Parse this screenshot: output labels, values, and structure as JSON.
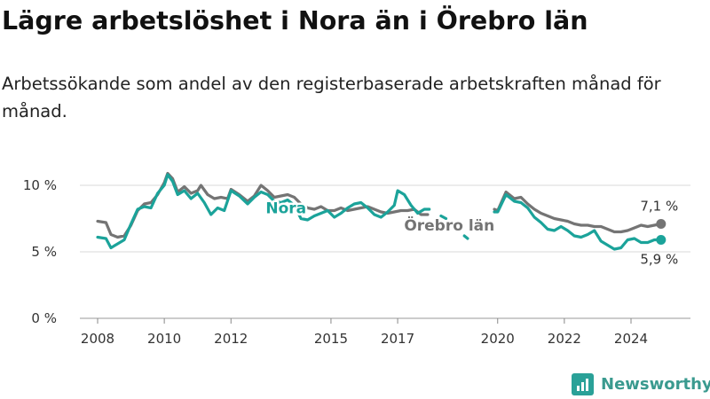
{
  "header": {
    "title": "Lägre arbetslöshet i Nora än i Örebro län",
    "subtitle": "Arbetssökande som andel av den registerbaserade arbetskraften månad för månad."
  },
  "brand": {
    "name": "Newsworthy",
    "icon": "bar-chart-logo-icon"
  },
  "chart_data": {
    "type": "line",
    "title": "Lägre arbetslöshet i Nora än i Örebro län",
    "subtitle": "Arbetssökande som andel av den registerbaserade arbetskraften månad för månad.",
    "xlabel": "",
    "ylabel": "",
    "x_range": [
      2007.5,
      2025.5
    ],
    "ylim": [
      0,
      12
    ],
    "y_ticks": [
      {
        "value": 0,
        "label": "0 %"
      },
      {
        "value": 5,
        "label": "5 %"
      },
      {
        "value": 10,
        "label": "10 %"
      }
    ],
    "x_ticks": [
      {
        "value": 2008,
        "label": "2008"
      },
      {
        "value": 2010,
        "label": "2010"
      },
      {
        "value": 2012,
        "label": "2012"
      },
      {
        "value": 2015,
        "label": "2015"
      },
      {
        "value": 2017,
        "label": "2017"
      },
      {
        "value": 2020,
        "label": "2020"
      },
      {
        "value": 2022,
        "label": "2022"
      },
      {
        "value": 2024,
        "label": "2024"
      }
    ],
    "grid": true,
    "series": [
      {
        "name": "Örebro län",
        "color": "#747474",
        "end_label": "7,1 %",
        "segments": [
          [
            [
              2008.0,
              7.3
            ],
            [
              2008.25,
              7.2
            ],
            [
              2008.4,
              6.3
            ],
            [
              2008.6,
              6.1
            ],
            [
              2008.8,
              6.2
            ],
            [
              2009.0,
              7.0
            ],
            [
              2009.2,
              8.1
            ],
            [
              2009.4,
              8.6
            ],
            [
              2009.6,
              8.7
            ],
            [
              2009.8,
              9.3
            ],
            [
              2010.0,
              10.2
            ],
            [
              2010.1,
              10.9
            ],
            [
              2010.25,
              10.5
            ],
            [
              2010.4,
              9.5
            ],
            [
              2010.6,
              9.9
            ],
            [
              2010.8,
              9.4
            ],
            [
              2011.0,
              9.6
            ],
            [
              2011.1,
              10.0
            ],
            [
              2011.3,
              9.3
            ],
            [
              2011.5,
              9.0
            ],
            [
              2011.7,
              9.1
            ],
            [
              2011.9,
              9.0
            ],
            [
              2012.0,
              9.7
            ],
            [
              2012.25,
              9.3
            ],
            [
              2012.5,
              8.8
            ],
            [
              2012.7,
              9.2
            ],
            [
              2012.9,
              10.0
            ],
            [
              2013.1,
              9.6
            ],
            [
              2013.3,
              9.1
            ],
            [
              2013.5,
              9.2
            ],
            [
              2013.7,
              9.3
            ],
            [
              2013.9,
              9.1
            ],
            [
              2014.1,
              8.6
            ],
            [
              2014.3,
              8.3
            ],
            [
              2014.5,
              8.2
            ],
            [
              2014.7,
              8.4
            ],
            [
              2014.9,
              8.1
            ],
            [
              2015.1,
              8.1
            ],
            [
              2015.3,
              8.3
            ],
            [
              2015.5,
              8.1
            ],
            [
              2015.7,
              8.2
            ],
            [
              2015.9,
              8.3
            ],
            [
              2016.1,
              8.4
            ],
            [
              2016.3,
              8.2
            ],
            [
              2016.5,
              8.0
            ],
            [
              2016.7,
              7.9
            ],
            [
              2016.9,
              8.0
            ],
            [
              2017.1,
              8.1
            ],
            [
              2017.3,
              8.1
            ],
            [
              2017.5,
              8.2
            ],
            [
              2017.7,
              7.8
            ],
            [
              2017.9,
              7.8
            ]
          ],
          [
            [
              2019.9,
              8.2
            ],
            [
              2020.0,
              8.1
            ],
            [
              2020.25,
              9.5
            ],
            [
              2020.5,
              9.0
            ],
            [
              2020.7,
              9.1
            ],
            [
              2020.9,
              8.6
            ],
            [
              2021.1,
              8.2
            ],
            [
              2021.3,
              7.9
            ],
            [
              2021.5,
              7.7
            ],
            [
              2021.7,
              7.5
            ],
            [
              2021.9,
              7.4
            ],
            [
              2022.1,
              7.3
            ],
            [
              2022.3,
              7.1
            ],
            [
              2022.5,
              7.0
            ],
            [
              2022.7,
              7.0
            ],
            [
              2022.9,
              6.9
            ],
            [
              2023.1,
              6.9
            ],
            [
              2023.3,
              6.7
            ],
            [
              2023.5,
              6.5
            ],
            [
              2023.7,
              6.5
            ],
            [
              2023.9,
              6.6
            ],
            [
              2024.1,
              6.8
            ],
            [
              2024.3,
              7.0
            ],
            [
              2024.5,
              6.9
            ],
            [
              2024.7,
              7.0
            ],
            [
              2024.9,
              7.1
            ]
          ]
        ]
      },
      {
        "name": "Nora",
        "color": "#1ba39a",
        "end_label": "5,9 %",
        "segments": [
          [
            [
              2008.0,
              6.1
            ],
            [
              2008.25,
              6.0
            ],
            [
              2008.4,
              5.3
            ],
            [
              2008.6,
              5.6
            ],
            [
              2008.8,
              5.9
            ],
            [
              2009.0,
              7.1
            ],
            [
              2009.2,
              8.2
            ],
            [
              2009.4,
              8.4
            ],
            [
              2009.6,
              8.3
            ],
            [
              2009.8,
              9.4
            ],
            [
              2010.0,
              10.0
            ],
            [
              2010.1,
              10.8
            ],
            [
              2010.25,
              10.3
            ],
            [
              2010.4,
              9.3
            ],
            [
              2010.6,
              9.6
            ],
            [
              2010.8,
              9.0
            ],
            [
              2011.0,
              9.4
            ],
            [
              2011.2,
              8.7
            ],
            [
              2011.4,
              7.8
            ],
            [
              2011.6,
              8.3
            ],
            [
              2011.8,
              8.1
            ],
            [
              2012.0,
              9.6
            ],
            [
              2012.25,
              9.2
            ],
            [
              2012.5,
              8.6
            ],
            [
              2012.7,
              9.1
            ],
            [
              2012.9,
              9.5
            ],
            [
              2013.1,
              9.3
            ],
            [
              2013.3,
              8.8
            ],
            [
              2013.5,
              8.7
            ],
            [
              2013.7,
              8.9
            ],
            [
              2013.9,
              8.5
            ],
            [
              2014.1,
              7.5
            ],
            [
              2014.3,
              7.4
            ],
            [
              2014.5,
              7.7
            ],
            [
              2014.7,
              7.9
            ],
            [
              2014.9,
              8.1
            ],
            [
              2015.1,
              7.6
            ],
            [
              2015.3,
              7.9
            ],
            [
              2015.5,
              8.3
            ],
            [
              2015.7,
              8.6
            ],
            [
              2015.9,
              8.7
            ],
            [
              2016.1,
              8.3
            ],
            [
              2016.3,
              7.8
            ],
            [
              2016.5,
              7.6
            ],
            [
              2016.7,
              8.0
            ],
            [
              2016.9,
              8.5
            ],
            [
              2017.0,
              9.6
            ],
            [
              2017.2,
              9.3
            ],
            [
              2017.4,
              8.5
            ],
            [
              2017.6,
              7.9
            ],
            [
              2017.8,
              8.2
            ],
            [
              2017.95,
              8.2
            ]
          ],
          [
            [
              2018.3,
              7.7
            ],
            [
              2018.45,
              7.5
            ]
          ],
          [
            [
              2019.0,
              6.2
            ],
            [
              2019.1,
              6.0
            ]
          ],
          [
            [
              2019.9,
              8.0
            ],
            [
              2020.0,
              8.0
            ],
            [
              2020.25,
              9.3
            ],
            [
              2020.5,
              8.8
            ],
            [
              2020.7,
              8.7
            ],
            [
              2020.9,
              8.3
            ],
            [
              2021.1,
              7.6
            ],
            [
              2021.3,
              7.2
            ],
            [
              2021.5,
              6.7
            ],
            [
              2021.7,
              6.6
            ],
            [
              2021.9,
              6.9
            ],
            [
              2022.1,
              6.6
            ],
            [
              2022.3,
              6.2
            ],
            [
              2022.5,
              6.1
            ],
            [
              2022.7,
              6.3
            ],
            [
              2022.9,
              6.6
            ],
            [
              2023.1,
              5.8
            ],
            [
              2023.3,
              5.5
            ],
            [
              2023.5,
              5.2
            ],
            [
              2023.7,
              5.3
            ],
            [
              2023.9,
              5.9
            ],
            [
              2024.1,
              6.0
            ],
            [
              2024.3,
              5.7
            ],
            [
              2024.5,
              5.7
            ],
            [
              2024.7,
              5.9
            ],
            [
              2024.9,
              5.9
            ]
          ]
        ]
      }
    ],
    "annotations": [
      {
        "series": "Nora",
        "text": "Nora",
        "x": 2013.65,
        "y": 8.3
      },
      {
        "series": "Örebro län",
        "text": "Örebro län",
        "x": 2018.55,
        "y": 7.0
      }
    ]
  }
}
